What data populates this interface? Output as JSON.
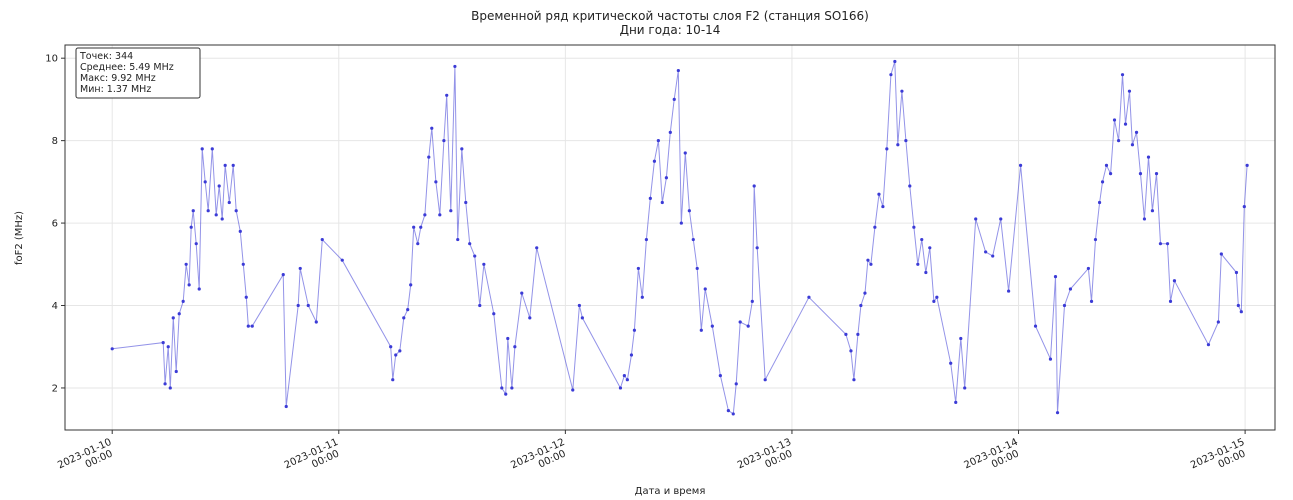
{
  "chart_data": {
    "type": "line",
    "title": "Временной ряд критической частоты слоя F2 (станция SO166)",
    "subtitle": "Дни года: 10-14",
    "x_label": "Дата и время",
    "y_label": "foF2 (MHz)",
    "annotations": [
      "Точек: 344",
      "Среднее: 5.49 MHz",
      "Макс: 9.92 MHz",
      "Мин: 1.37 MHz"
    ],
    "color": "#3b3bd6",
    "grid": true,
    "xlim": [
      "2023-01-09T19:00",
      "2023-01-15T03:10"
    ],
    "ylim": [
      0.98,
      10.32
    ],
    "yticks": [
      2,
      4,
      6,
      8,
      10
    ],
    "xticks": [
      {
        "value": "2023-01-10T00:00",
        "label": [
          "2023-01-10",
          "00:00"
        ]
      },
      {
        "value": "2023-01-11T00:00",
        "label": [
          "2023-01-11",
          "00:00"
        ]
      },
      {
        "value": "2023-01-12T00:00",
        "label": [
          "2023-01-12",
          "00:00"
        ]
      },
      {
        "value": "2023-01-13T00:00",
        "label": [
          "2023-01-13",
          "00:00"
        ]
      },
      {
        "value": "2023-01-14T00:00",
        "label": [
          "2023-01-14",
          "00:00"
        ]
      },
      {
        "value": "2023-01-15T00:00",
        "label": [
          "2023-01-15",
          "00:00"
        ]
      }
    ],
    "x": [
      "2023-01-10T00:00",
      "2023-01-10T05:24",
      "2023-01-10T05:36",
      "2023-01-10T05:56",
      "2023-01-10T06:09",
      "2023-01-10T06:28",
      "2023-01-10T06:47",
      "2023-01-10T07:06",
      "2023-01-10T07:31",
      "2023-01-10T07:50",
      "2023-01-10T08:09",
      "2023-01-10T08:22",
      "2023-01-10T08:35",
      "2023-01-10T08:54",
      "2023-01-10T09:13",
      "2023-01-10T09:32",
      "2023-01-10T09:51",
      "2023-01-10T10:10",
      "2023-01-10T10:36",
      "2023-01-10T11:01",
      "2023-01-10T11:20",
      "2023-01-10T11:39",
      "2023-01-10T11:58",
      "2023-01-10T12:24",
      "2023-01-10T12:49",
      "2023-01-10T13:08",
      "2023-01-10T13:34",
      "2023-01-10T13:53",
      "2023-01-10T14:12",
      "2023-01-10T14:25",
      "2023-01-10T14:50",
      "2023-01-10T18:07",
      "2023-01-10T18:26",
      "2023-01-10T19:42",
      "2023-01-10T19:55",
      "2023-01-10T20:46",
      "2023-01-10T21:37",
      "2023-01-10T22:15",
      "2023-01-11T00:22",
      "2023-01-11T05:30",
      "2023-01-11T05:43",
      "2023-01-11T06:02",
      "2023-01-11T06:28",
      "2023-01-11T06:53",
      "2023-01-11T07:18",
      "2023-01-11T07:37",
      "2023-01-11T07:56",
      "2023-01-11T08:22",
      "2023-01-11T08:41",
      "2023-01-11T09:07",
      "2023-01-11T09:32",
      "2023-01-11T09:51",
      "2023-01-11T10:17",
      "2023-01-11T10:42",
      "2023-01-11T11:08",
      "2023-01-11T11:26",
      "2023-01-11T11:52",
      "2023-01-11T12:18",
      "2023-01-11T12:36",
      "2023-01-11T13:02",
      "2023-01-11T13:27",
      "2023-01-11T13:52",
      "2023-01-11T14:24",
      "2023-01-11T14:56",
      "2023-01-11T15:22",
      "2023-01-11T16:25",
      "2023-01-11T17:16",
      "2023-01-11T17:41",
      "2023-01-11T17:54",
      "2023-01-11T18:20",
      "2023-01-11T18:39",
      "2023-01-11T19:23",
      "2023-01-11T20:14",
      "2023-01-11T20:58",
      "2023-01-12T00:47",
      "2023-01-12T01:29",
      "2023-01-12T01:48",
      "2023-01-12T05:50",
      "2023-01-12T06:15",
      "2023-01-12T06:34",
      "2023-01-12T07:00",
      "2023-01-12T07:19",
      "2023-01-12T07:44",
      "2023-01-12T08:09",
      "2023-01-12T08:35",
      "2023-01-12T09:00",
      "2023-01-12T09:26",
      "2023-01-12T09:51",
      "2023-01-12T10:16",
      "2023-01-12T10:42",
      "2023-01-12T11:07",
      "2023-01-12T11:32",
      "2023-01-12T11:58",
      "2023-01-12T12:17",
      "2023-01-12T12:42",
      "2023-01-12T13:08",
      "2023-01-12T13:33",
      "2023-01-12T13:58",
      "2023-01-12T14:24",
      "2023-01-12T14:49",
      "2023-01-12T15:34",
      "2023-01-12T16:25",
      "2023-01-12T17:16",
      "2023-01-12T17:47",
      "2023-01-12T18:06",
      "2023-01-12T18:31",
      "2023-01-12T19:22",
      "2023-01-12T19:48",
      "2023-01-12T20:00",
      "2023-01-12T20:19",
      "2023-01-12T21:10",
      "2023-01-13T01:48",
      "2023-01-13T05:43",
      "2023-01-13T06:15",
      "2023-01-13T06:34",
      "2023-01-13T06:59",
      "2023-01-13T07:18",
      "2023-01-13T07:44",
      "2023-01-13T08:03",
      "2023-01-13T08:22",
      "2023-01-13T08:47",
      "2023-01-13T09:13",
      "2023-01-13T09:38",
      "2023-01-13T10:03",
      "2023-01-13T10:29",
      "2023-01-13T10:54",
      "2023-01-13T11:13",
      "2023-01-13T11:39",
      "2023-01-13T12:04",
      "2023-01-13T12:29",
      "2023-01-13T12:55",
      "2023-01-13T13:20",
      "2023-01-13T13:45",
      "2023-01-13T14:11",
      "2023-01-13T14:36",
      "2023-01-13T15:02",
      "2023-01-13T15:21",
      "2023-01-13T16:49",
      "2023-01-13T17:21",
      "2023-01-13T17:53",
      "2023-01-13T18:18",
      "2023-01-13T19:28",
      "2023-01-13T20:31",
      "2023-01-13T21:16",
      "2023-01-13T22:07",
      "2023-01-13T22:57",
      "2023-01-14T00:13",
      "2023-01-14T01:48",
      "2023-01-14T03:23",
      "2023-01-14T03:55",
      "2023-01-14T04:08",
      "2023-01-14T04:52",
      "2023-01-14T05:30",
      "2023-01-14T07:24",
      "2023-01-14T07:44",
      "2023-01-14T08:09",
      "2023-01-14T08:35",
      "2023-01-14T08:54",
      "2023-01-14T09:19",
      "2023-01-14T09:45",
      "2023-01-14T10:10",
      "2023-01-14T10:36",
      "2023-01-14T11:01",
      "2023-01-14T11:20",
      "2023-01-14T11:45",
      "2023-01-14T12:04",
      "2023-01-14T12:30",
      "2023-01-14T12:55",
      "2023-01-14T13:20",
      "2023-01-14T13:46",
      "2023-01-14T14:11",
      "2023-01-14T14:37",
      "2023-01-14T15:02",
      "2023-01-14T15:47",
      "2023-01-14T16:06",
      "2023-01-14T16:31",
      "2023-01-14T20:07",
      "2023-01-14T21:10",
      "2023-01-14T21:29",
      "2023-01-14T23:05",
      "2023-01-14T23:17",
      "2023-01-14T23:36",
      "2023-01-14T23:55",
      "2023-01-15T00:13"
    ],
    "values": [
      2.95,
      3.1,
      2.1,
      3.0,
      2.0,
      3.7,
      2.4,
      3.8,
      4.1,
      5.0,
      4.5,
      5.9,
      6.3,
      5.5,
      4.4,
      7.8,
      7.0,
      6.3,
      7.8,
      6.2,
      6.9,
      6.1,
      7.4,
      6.5,
      7.4,
      6.3,
      5.8,
      5.0,
      4.2,
      3.5,
      3.5,
      4.75,
      1.55,
      4.0,
      4.9,
      4.0,
      3.6,
      5.6,
      5.1,
      3.0,
      2.2,
      2.8,
      2.9,
      3.7,
      3.9,
      4.5,
      5.9,
      5.5,
      5.9,
      6.2,
      7.6,
      8.3,
      7.0,
      6.2,
      8.0,
      9.1,
      6.3,
      9.8,
      5.6,
      7.8,
      6.5,
      5.5,
      5.2,
      4.0,
      5.0,
      3.8,
      2.0,
      1.85,
      3.2,
      2.0,
      3.0,
      4.3,
      3.7,
      5.4,
      1.95,
      4.0,
      3.7,
      2.0,
      2.3,
      2.2,
      2.8,
      3.4,
      4.9,
      4.2,
      5.6,
      6.6,
      7.5,
      8.0,
      6.5,
      7.1,
      8.2,
      9.0,
      9.7,
      6.0,
      7.7,
      6.3,
      5.6,
      4.9,
      3.4,
      4.4,
      3.5,
      2.3,
      1.45,
      1.37,
      2.1,
      3.6,
      3.5,
      4.1,
      6.9,
      5.4,
      2.2,
      4.2,
      3.3,
      2.9,
      2.2,
      3.3,
      4.0,
      4.3,
      5.1,
      5.0,
      5.9,
      6.7,
      6.4,
      7.8,
      9.6,
      9.92,
      7.9,
      9.2,
      8.0,
      6.9,
      5.9,
      5.0,
      5.6,
      4.8,
      5.4,
      4.1,
      4.2,
      2.6,
      1.65,
      3.2,
      2.0,
      6.1,
      5.3,
      5.2,
      6.1,
      4.35,
      7.4,
      3.5,
      2.7,
      4.7,
      1.4,
      4.0,
      4.4,
      4.9,
      4.1,
      5.6,
      6.5,
      7.0,
      7.4,
      7.2,
      8.5,
      8.0,
      9.6,
      8.4,
      9.2,
      7.9,
      8.2,
      7.2,
      6.1,
      7.6,
      6.3,
      7.2,
      5.5,
      5.5,
      4.1,
      4.6,
      3.05,
      3.6,
      5.25,
      4.8,
      4.0,
      3.85,
      6.4,
      7.4
    ]
  }
}
